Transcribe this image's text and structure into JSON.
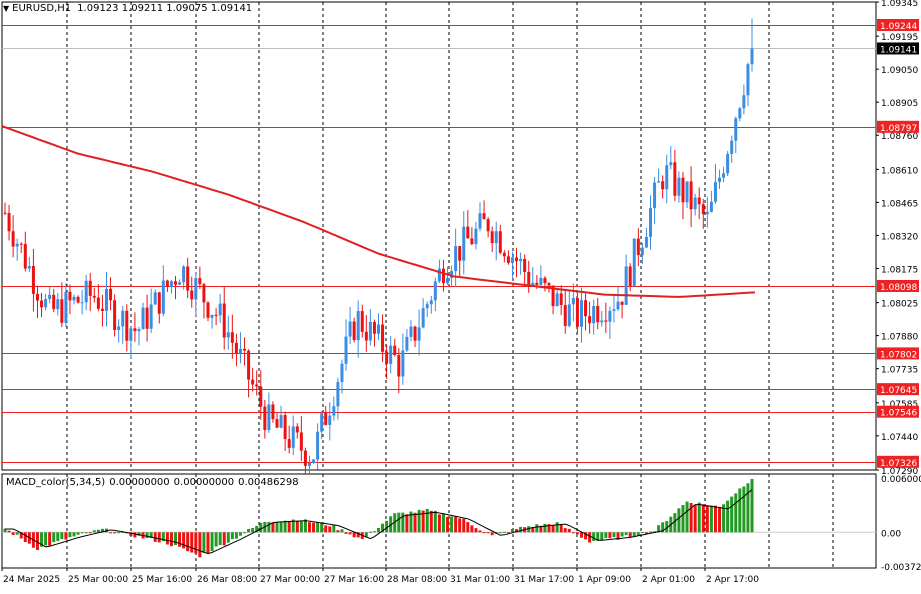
{
  "header": {
    "symbol": "EURUSD,H1",
    "open": "1.09123",
    "high": "1.09211",
    "low": "1.09075",
    "close": "1.09141"
  },
  "macd_header": {
    "name": "MACD_color(5,34,5)",
    "v1": "0.00000000",
    "v2": "0.00000000",
    "v3": "0.00486298"
  },
  "colors": {
    "bull": "#3b8de3",
    "bear": "#ee1111",
    "ma": "#e02020",
    "level_line": "#ee2222",
    "grid": "#000000",
    "axis_text": "#000000",
    "hist_up": "#229922",
    "hist_down": "#ee1111",
    "signal": "#000000"
  },
  "price_axis_labels": [
    "1.09345",
    "1.09195",
    "1.09050",
    "1.08905",
    "1.08760",
    "1.08610",
    "1.08465",
    "1.08320",
    "1.08175",
    "1.08025",
    "1.07880",
    "1.07735",
    "1.07585",
    "1.07440",
    "1.07290"
  ],
  "level_tags": [
    "1.09244",
    "1.09141",
    "1.08797",
    "1.08098",
    "1.07802",
    "1.07645",
    "1.07546",
    "1.07326"
  ],
  "macd_axis_labels": [
    "0.0060008",
    "0.00",
    "-0.0037240"
  ],
  "time_axis_labels": [
    "24 Mar 2025",
    "25 Mar 00:00",
    "25 Mar 16:00",
    "26 Mar 08:00",
    "27 Mar 00:00",
    "27 Mar 16:00",
    "28 Mar 08:00",
    "31 Mar 01:00",
    "31 Mar 17:00",
    "1 Apr 09:00",
    "2 Apr 01:00",
    "2 Apr 17:00"
  ],
  "chart_data": {
    "type": "candlestick",
    "symbol": "EURUSD",
    "timeframe": "H1",
    "ylim": [
      1.0729,
      1.09345
    ],
    "horizontal_levels": [
      1.09244,
      1.08797,
      1.08098,
      1.07802,
      1.07645,
      1.07546,
      1.07326
    ],
    "current_price": 1.09141,
    "ohlc_keypoints": [
      {
        "time": "24 Mar 2025",
        "close": 1.0842
      },
      {
        "time": "24 Mar 18:00",
        "close": 1.0798
      },
      {
        "time": "25 Mar 00:00",
        "close": 1.0806
      },
      {
        "time": "25 Mar 09:00",
        "close": 1.079
      },
      {
        "time": "25 Mar 16:00",
        "close": 1.0818
      },
      {
        "time": "26 Mar 08:00",
        "close": 1.0793
      },
      {
        "time": "26 Mar 20:00",
        "close": 1.075
      },
      {
        "time": "27 Mar 00:00",
        "close": 1.0735
      },
      {
        "time": "27 Mar 16:00",
        "close": 1.0796
      },
      {
        "time": "28 Mar 08:00",
        "close": 1.0775
      },
      {
        "time": "28 Mar 12:00",
        "close": 1.082
      },
      {
        "time": "31 Mar 01:00",
        "close": 1.0838
      },
      {
        "time": "31 Mar 17:00",
        "close": 1.0812
      },
      {
        "time": "1 Apr 09:00",
        "close": 1.0796
      },
      {
        "time": "2 Apr 01:00",
        "close": 1.0805
      },
      {
        "time": "2 Apr 12:00",
        "close": 1.086
      },
      {
        "time": "2 Apr 17:00",
        "close": 1.0838
      },
      {
        "time": "2 Apr 22:00",
        "close": 1.09141
      }
    ],
    "ma_keypoints": [
      1.088,
      1.0868,
      1.086,
      1.085,
      1.0838,
      1.0824,
      1.0814,
      1.081,
      1.0806,
      1.0805,
      1.0807
    ],
    "macd": {
      "ylim": [
        -0.003724,
        0.0060008
      ],
      "histogram_keypoints": [
        0.0004,
        -0.0018,
        -0.0006,
        0.0003,
        -0.0004,
        -0.0012,
        -0.0026,
        -0.0008,
        0.0012,
        0.0014,
        0.0008,
        -0.0008,
        0.002,
        0.0024,
        0.0016,
        -0.0004,
        0.0006,
        0.001,
        -0.001,
        -0.0006,
        0.0002,
        0.0034,
        0.0028,
        0.006
      ]
    }
  }
}
